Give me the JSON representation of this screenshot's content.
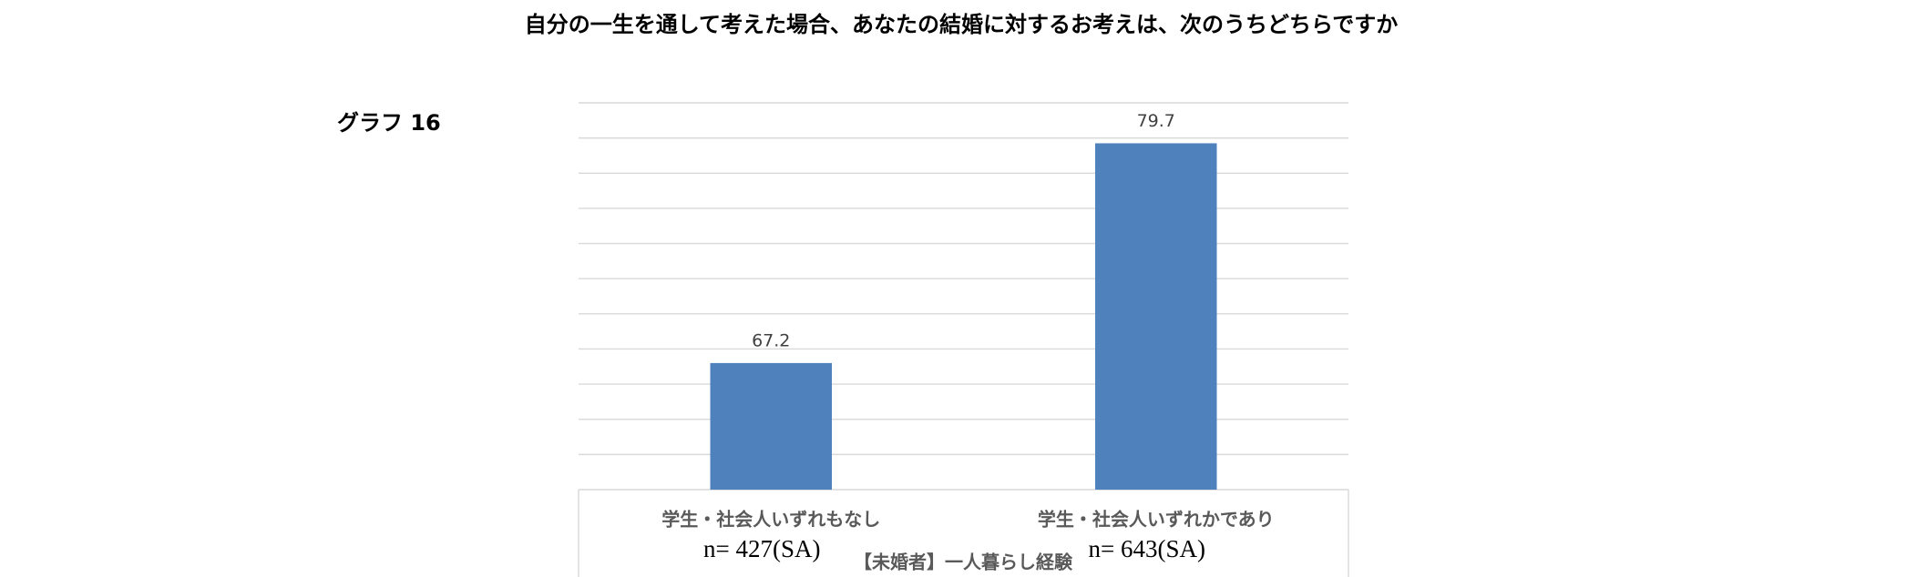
{
  "chart_data": {
    "type": "bar",
    "title": "自分の一生を通して考えた場合、あなたの結婚に対するお考えは、次のうちどちらですか",
    "graph_label": "グラフ 16",
    "x_label": "【未婚者】一人暮らし経験",
    "categories": [
      "学生・社会人いずれもなし",
      "学生・社会人いずれかであり"
    ],
    "sample_labels": [
      "n= 427(SA)",
      "n= 643(SA)"
    ],
    "values": [
      67.2,
      79.7
    ],
    "color": "#4f81bd",
    "ylim": [
      60,
      82
    ],
    "yticks": [
      60,
      62,
      64,
      66,
      68,
      70,
      72,
      74,
      76,
      78,
      80,
      82
    ],
    "grid": true
  }
}
